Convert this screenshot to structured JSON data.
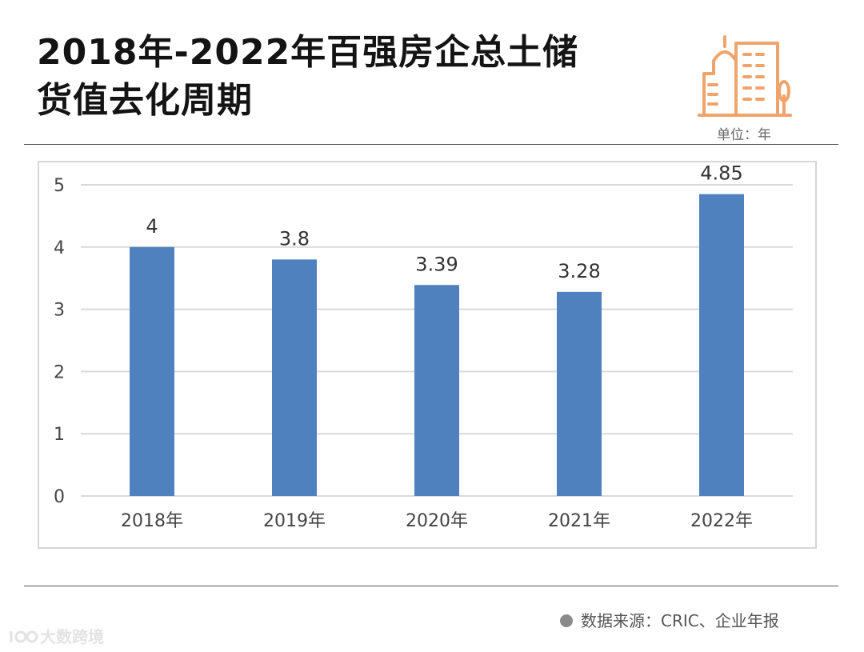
{
  "header": {
    "title_line1": "2018年-2022年百强房企总土储",
    "title_line2": "货值去化周期",
    "unit": "单位：年"
  },
  "footer": {
    "source": "数据来源：CRIC、企业年报",
    "watermark": "大数跨境"
  },
  "icons": {
    "logo": "city-buildings-icon",
    "source_bullet": "dot-icon"
  },
  "colors": {
    "bar": "#4e81bd",
    "logo": "#f0a36a",
    "grid": "#d9d9d9"
  },
  "chart_data": {
    "type": "bar",
    "categories": [
      "2018年",
      "2019年",
      "2020年",
      "2021年",
      "2022年"
    ],
    "values": [
      4,
      3.8,
      3.39,
      3.28,
      4.85
    ],
    "data_labels": [
      "4",
      "3.8",
      "3.39",
      "3.28",
      "4.85"
    ],
    "ylim": [
      0,
      5
    ],
    "yticks": [
      0,
      1,
      2,
      3,
      4,
      5
    ],
    "grid": true,
    "legend": "none",
    "title": "",
    "xlabel": "",
    "ylabel": ""
  }
}
